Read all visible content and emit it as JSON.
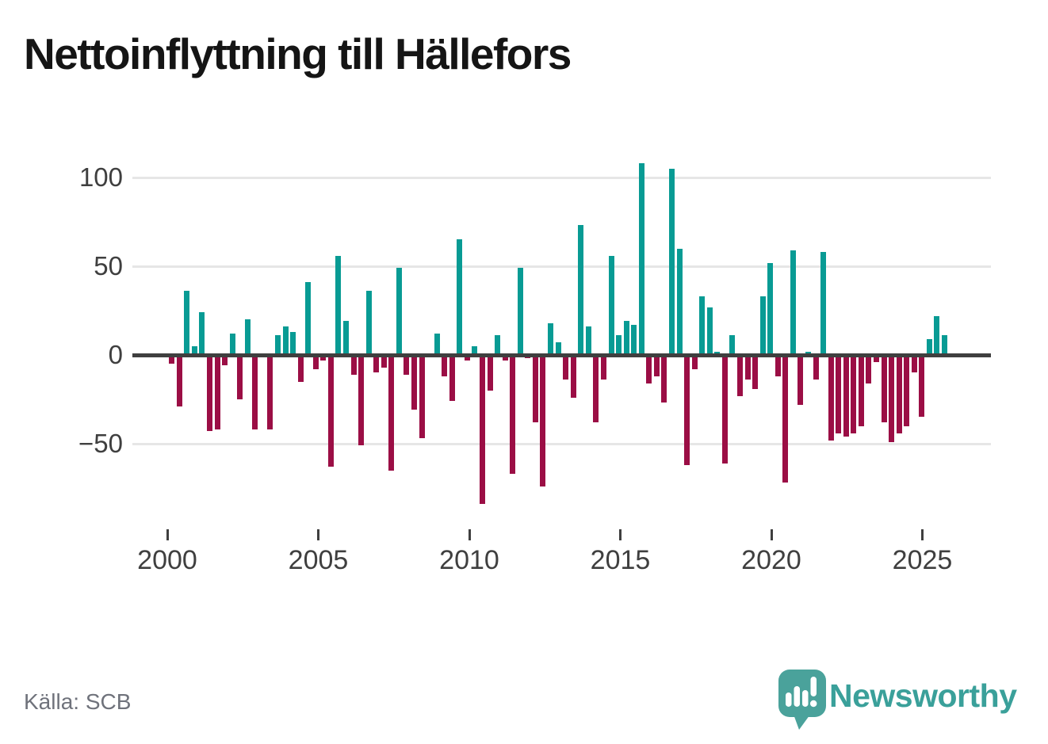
{
  "title": "Nettoinflyttning till Hällefors",
  "source": "Källa: SCB",
  "brand": {
    "name": "Newsworthy",
    "icon": "bar-chart-speech-bubble-icon"
  },
  "colors": {
    "positive": "#089b94",
    "negative": "#9b0e45",
    "zero_line": "#3f3f3f",
    "gridline": "#e6e6e6",
    "axis_text": "#3f3f3f",
    "title_text": "#151515",
    "source_text": "#6f727b",
    "brand_teal": "#3aa09a",
    "logo_bubble": "#4aa29b"
  },
  "chart_data": {
    "type": "bar",
    "title": "Nettoinflyttning till Hällefors",
    "x_unit": "quarter",
    "start_period": "2000Q1",
    "end_period": "2025Q3",
    "values": [
      -5,
      -29,
      36,
      5,
      24,
      -43,
      -42,
      -6,
      12,
      -25,
      20,
      -42,
      1,
      -42,
      11,
      16,
      13,
      -15,
      41,
      -8,
      -3,
      -63,
      56,
      19,
      -11,
      -51,
      36,
      -10,
      -7,
      -65,
      49,
      -11,
      -31,
      -47,
      0,
      12,
      -12,
      -26,
      65,
      -3,
      5,
      -84,
      -20,
      11,
      -3,
      -67,
      49,
      -2,
      -38,
      -74,
      18,
      7,
      -14,
      -24,
      73,
      16,
      -38,
      -14,
      56,
      11,
      19,
      17,
      108,
      -16,
      -12,
      -27,
      105,
      60,
      -62,
      -8,
      33,
      27,
      2,
      -61,
      11,
      -23,
      -14,
      -19,
      33,
      52,
      -12,
      -72,
      59,
      -28,
      2,
      -14,
      58,
      -48,
      -44,
      -46,
      -44,
      -40,
      -16,
      -4,
      -38,
      -49,
      -44,
      -40,
      -10,
      -35,
      9,
      22,
      11
    ],
    "y_ticks": [
      100,
      50,
      0,
      -50
    ],
    "y_tick_labels": [
      "100",
      "50",
      "0",
      "−50"
    ],
    "x_ticks": [
      2000,
      2005,
      2010,
      2015,
      2020,
      2025
    ],
    "ylim": [
      -90,
      115
    ],
    "grid": "horizontal",
    "legend": "none",
    "positive_color": "#089b94",
    "negative_color": "#9b0e45"
  }
}
